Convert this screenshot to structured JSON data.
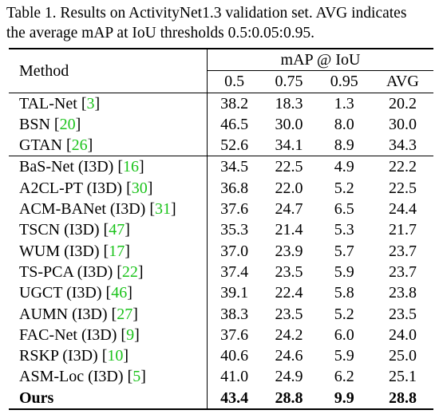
{
  "caption": {
    "line1": "Table 1. Results on ActivityNet1.3 validation set. AVG indicates",
    "line2": "the average mAP at IoU thresholds 0.5:0.05:0.95."
  },
  "table": {
    "method_header": "Method",
    "group_header": "mAP @ IoU",
    "columns": [
      "0.5",
      "0.75",
      "0.95",
      "AVG"
    ],
    "groups": [
      [
        {
          "name": "TAL-Net ",
          "cite": "3",
          "values": [
            "38.2",
            "18.3",
            "1.3",
            "20.2"
          ]
        },
        {
          "name": "BSN ",
          "cite": "20",
          "values": [
            "46.5",
            "30.0",
            "8.0",
            "30.0"
          ]
        },
        {
          "name": "GTAN ",
          "cite": "26",
          "values": [
            "52.6",
            "34.1",
            "8.9",
            "34.3"
          ]
        }
      ],
      [
        {
          "name": "BaS-Net (I3D) ",
          "cite": "16",
          "values": [
            "34.5",
            "22.5",
            "4.9",
            "22.2"
          ]
        },
        {
          "name": "A2CL-PT (I3D) ",
          "cite": "30",
          "values": [
            "36.8",
            "22.0",
            "5.2",
            "22.5"
          ]
        },
        {
          "name": "ACM-BANet (I3D) ",
          "cite": "31",
          "values": [
            "37.6",
            "24.7",
            "6.5",
            "24.4"
          ]
        },
        {
          "name": "TSCN (I3D) ",
          "cite": "47",
          "values": [
            "35.3",
            "21.4",
            "5.3",
            "21.7"
          ]
        },
        {
          "name": "WUM (I3D) ",
          "cite": "17",
          "values": [
            "37.0",
            "23.9",
            "5.7",
            "23.7"
          ]
        },
        {
          "name": "TS-PCA (I3D) ",
          "cite": "22",
          "values": [
            "37.4",
            "23.5",
            "5.9",
            "23.7"
          ]
        },
        {
          "name": "UGCT (I3D) ",
          "cite": "46",
          "values": [
            "39.1",
            "22.4",
            "5.8",
            "23.8"
          ]
        },
        {
          "name": "AUMN (I3D) ",
          "cite": "27",
          "values": [
            "38.3",
            "23.5",
            "5.2",
            "23.5"
          ]
        },
        {
          "name": "FAC-Net (I3D) ",
          "cite": "9",
          "values": [
            "37.6",
            "24.2",
            "6.0",
            "24.0"
          ]
        },
        {
          "name": "RSKP (I3D) ",
          "cite": "10",
          "values": [
            "40.6",
            "24.6",
            "5.9",
            "25.0"
          ]
        },
        {
          "name": "ASM-Loc (I3D) ",
          "cite": "5",
          "values": [
            "41.0",
            "24.9",
            "6.2",
            "25.1"
          ]
        },
        {
          "name": "Ours",
          "cite": "",
          "values": [
            "43.4",
            "28.8",
            "9.9",
            "28.8"
          ],
          "bold": true
        }
      ]
    ]
  }
}
